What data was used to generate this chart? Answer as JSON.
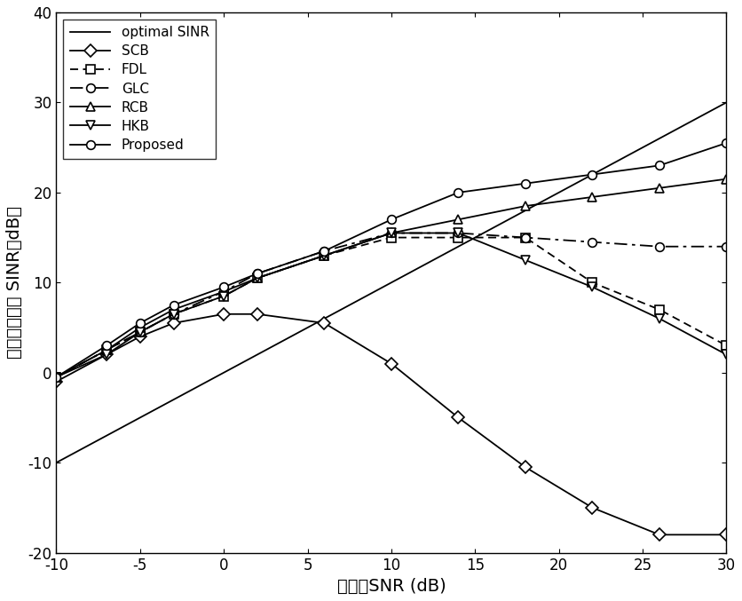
{
  "snr_x": [
    -10,
    -7,
    -5,
    -3,
    0,
    2,
    6,
    10,
    14,
    18,
    22,
    26,
    30
  ],
  "optimal_SINR": [
    -10,
    -7,
    -5,
    -3,
    0,
    2,
    6,
    10,
    14,
    18,
    22,
    26,
    30
  ],
  "SCB": [
    -1,
    2,
    4,
    5.5,
    6.5,
    6.5,
    5.5,
    1,
    -5,
    -10.5,
    -15,
    -18,
    -18
  ],
  "FDL": [
    -0.5,
    2.5,
    4.5,
    6.5,
    8.5,
    10.5,
    13,
    15,
    15,
    15,
    10,
    7,
    3
  ],
  "GLC": [
    -0.5,
    2.5,
    4.5,
    6.5,
    9,
    11,
    13.5,
    15.5,
    15.5,
    15,
    14.5,
    14,
    14
  ],
  "RCB": [
    -0.5,
    2.5,
    5,
    7,
    9,
    10.5,
    13,
    15.5,
    17,
    18.5,
    19.5,
    20.5,
    21.5
  ],
  "HKB": [
    -0.5,
    2,
    4.5,
    6.5,
    8.5,
    10.5,
    13,
    15.5,
    15.5,
    12.5,
    9.5,
    6,
    2
  ],
  "Proposed": [
    -0.5,
    3,
    5.5,
    7.5,
    9.5,
    11,
    13.5,
    17,
    20,
    21,
    22,
    23,
    25.5
  ],
  "xlim": [
    -10,
    30
  ],
  "ylim": [
    -20,
    40
  ],
  "xticks": [
    -10,
    -5,
    0,
    5,
    10,
    15,
    20,
    25,
    30
  ],
  "yticks": [
    -20,
    -10,
    0,
    10,
    20,
    30,
    40
  ],
  "xlabel": "信噪比SNR (dB)",
  "ylabel": "输出信干噪比 SINR（dB）",
  "line_color": "black",
  "legend_labels": [
    "optimal SINR",
    "SCB",
    "FDL",
    "GLC",
    "RCB",
    "HKB",
    "Proposed"
  ],
  "figsize": [
    8.36,
    6.77
  ],
  "dpi": 100
}
